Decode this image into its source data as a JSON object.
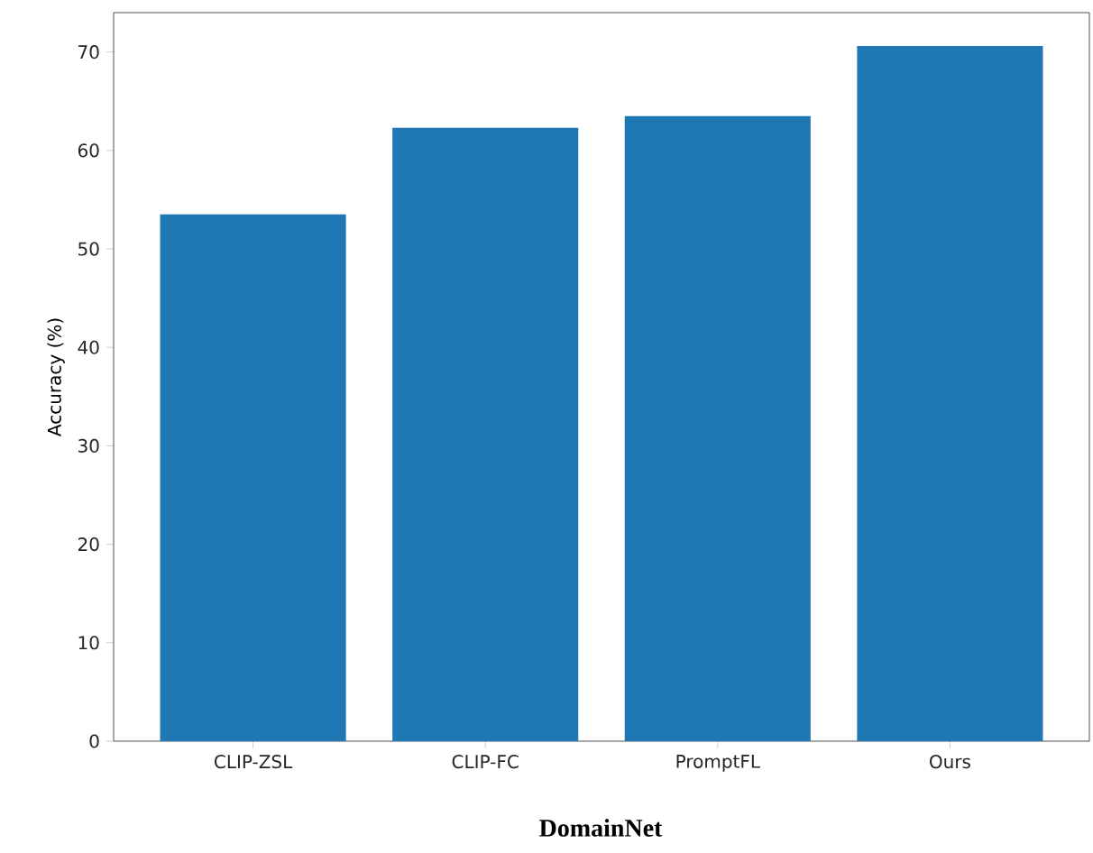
{
  "chart_data": {
    "type": "bar",
    "title": "DomainNet",
    "ylabel": "Accuracy (%)",
    "categories": [
      "CLIP-ZSL",
      "CLIP-FC",
      "PromptFL",
      "Ours"
    ],
    "values": [
      53.5,
      62.3,
      63.5,
      70.6
    ],
    "color": "#1f77b4",
    "ylim": [
      0,
      74
    ],
    "yticks": [
      0,
      10,
      20,
      30,
      40,
      50,
      60,
      70
    ],
    "grid": false
  }
}
